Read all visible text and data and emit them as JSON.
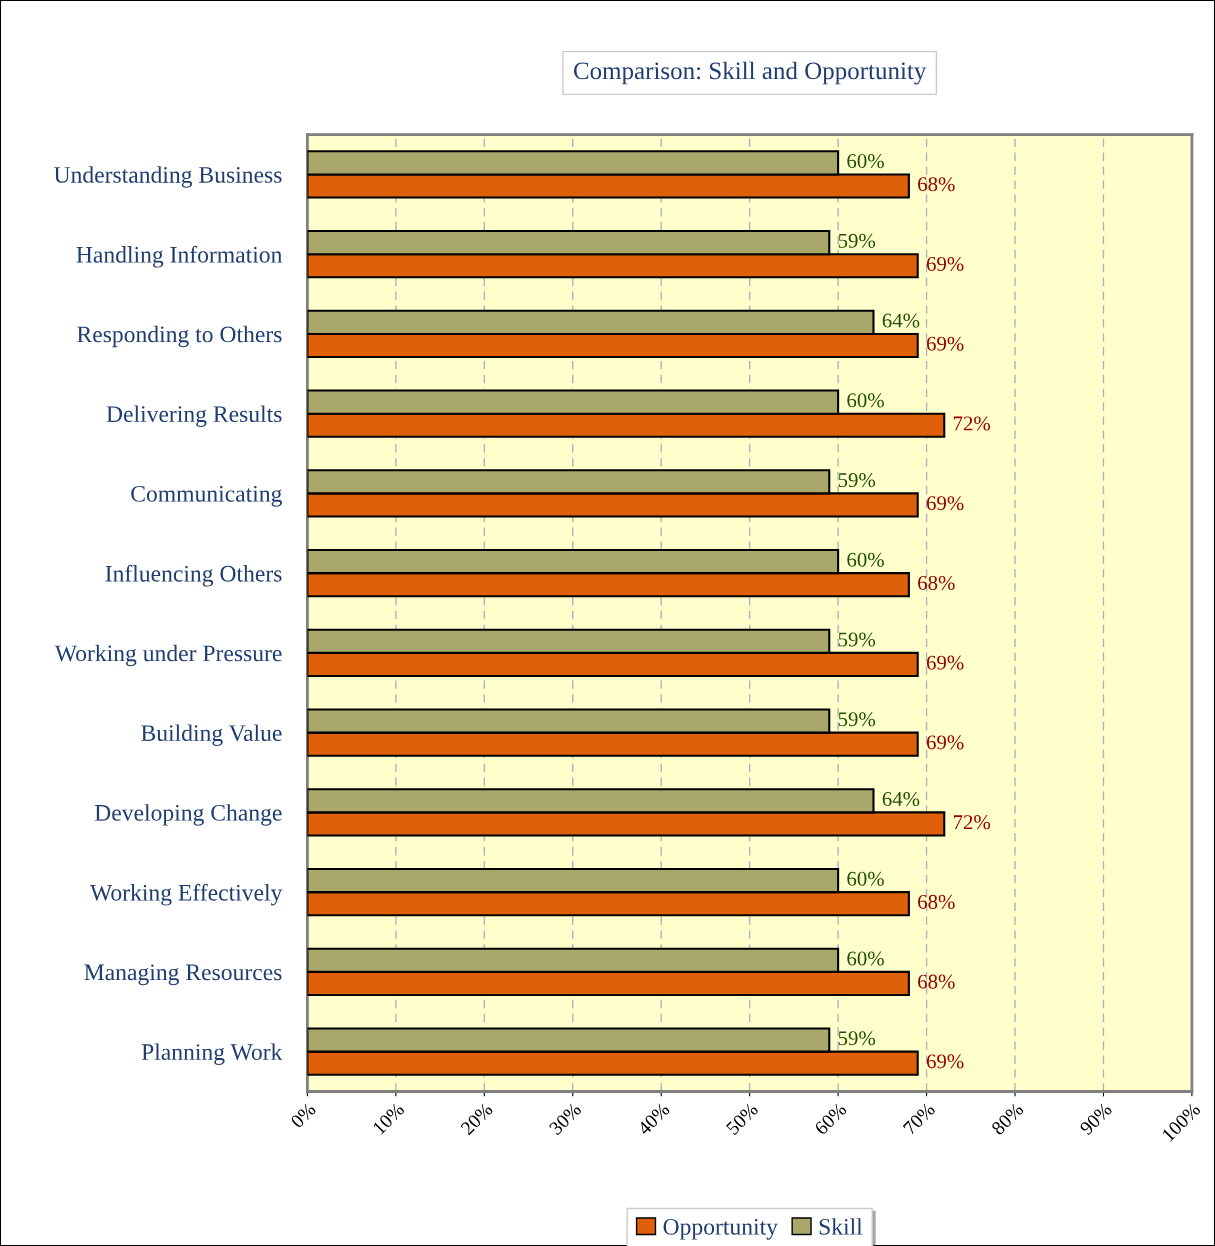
{
  "chart_data": {
    "type": "bar",
    "orientation": "horizontal",
    "title": "Comparison: Skill and Opportunity",
    "categories": [
      "Understanding Business",
      "Handling Information",
      "Responding to Others",
      "Delivering Results",
      "Communicating",
      "Influencing Others",
      "Working under Pressure",
      "Building Value",
      "Developing Change",
      "Working Effectively",
      "Managing Resources",
      "Planning Work"
    ],
    "series": [
      {
        "name": "Opportunity",
        "color": "#e0600a",
        "values": [
          68,
          69,
          69,
          72,
          69,
          68,
          69,
          69,
          72,
          68,
          68,
          69
        ],
        "value_labels": [
          "68%",
          "69%",
          "69%",
          "72%",
          "69%",
          "68%",
          "69%",
          "69%",
          "72%",
          "68%",
          "68%",
          "69%"
        ]
      },
      {
        "name": "Skill",
        "color": "#a9a86a",
        "values": [
          60,
          59,
          64,
          60,
          59,
          60,
          59,
          59,
          64,
          60,
          60,
          59
        ],
        "value_labels": [
          "60%",
          "59%",
          "64%",
          "60%",
          "59%",
          "60%",
          "59%",
          "59%",
          "64%",
          "60%",
          "60%",
          "59%"
        ]
      }
    ],
    "xlim": [
      0,
      100
    ],
    "xticks": [
      {
        "value": 0,
        "label": "0%"
      },
      {
        "value": 10,
        "label": "10%"
      },
      {
        "value": 20,
        "label": "20%"
      },
      {
        "value": 30,
        "label": "30%"
      },
      {
        "value": 40,
        "label": "40%"
      },
      {
        "value": 50,
        "label": "50%"
      },
      {
        "value": 60,
        "label": "60%"
      },
      {
        "value": 70,
        "label": "70%"
      },
      {
        "value": 80,
        "label": "80%"
      },
      {
        "value": 90,
        "label": "90%"
      },
      {
        "value": 100,
        "label": "100%"
      }
    ],
    "grid": "x",
    "legend": "bottom"
  }
}
